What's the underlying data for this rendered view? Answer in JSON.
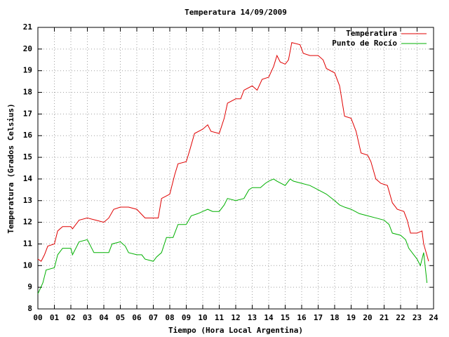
{
  "chart_data": {
    "type": "line",
    "title": "Temperatura 14/09/2009",
    "xlabel": "Tiempo (Hora Local Argentina)",
    "ylabel": "Temperatura (Grados Celsius)",
    "xlim": [
      0,
      24
    ],
    "ylim": [
      8,
      21
    ],
    "xticks": [
      {
        "value": 0,
        "label": "00"
      },
      {
        "value": 1,
        "label": "01"
      },
      {
        "value": 2,
        "label": "02"
      },
      {
        "value": 3,
        "label": "03"
      },
      {
        "value": 4,
        "label": "04"
      },
      {
        "value": 5,
        "label": "05"
      },
      {
        "value": 6,
        "label": "06"
      },
      {
        "value": 7,
        "label": "07"
      },
      {
        "value": 8,
        "label": "08"
      },
      {
        "value": 9,
        "label": "09"
      },
      10,
      11,
      12,
      13,
      14,
      15,
      16,
      17,
      18,
      19,
      20,
      21,
      22,
      23,
      24
    ],
    "yticks": [
      8,
      9,
      10,
      11,
      12,
      13,
      14,
      15,
      16,
      17,
      18,
      19,
      20,
      21
    ],
    "grid": true,
    "legend": "top-right",
    "series": [
      {
        "name": "Temperatura",
        "color": "#e00000",
        "x": [
          0,
          0.2,
          0.4,
          0.6,
          1,
          1.2,
          1.5,
          2,
          2.1,
          2.5,
          3,
          3.5,
          4,
          4.3,
          4.6,
          5,
          5.5,
          6,
          6.5,
          7,
          7.3,
          7.5,
          8,
          8.3,
          8.5,
          9,
          9.2,
          9.5,
          10,
          10.3,
          10.5,
          11,
          11.3,
          11.5,
          12,
          12.3,
          12.5,
          13,
          13.3,
          13.6,
          14,
          14.3,
          14.5,
          14.7,
          15,
          15.2,
          15.4,
          15.9,
          16.1,
          16.5,
          17,
          17.3,
          17.5,
          18,
          18.3,
          18.6,
          19,
          19.3,
          19.6,
          20,
          20.2,
          20.5,
          20.8,
          21.2,
          21.5,
          21.8,
          22.2,
          22.4,
          22.6,
          23,
          23.3,
          23.4,
          23.7
        ],
        "values": [
          10.3,
          10.2,
          10.5,
          10.9,
          11,
          11.6,
          11.8,
          11.8,
          11.7,
          12.1,
          12.2,
          12.1,
          12,
          12.2,
          12.6,
          12.7,
          12.7,
          12.6,
          12.2,
          12.2,
          12.2,
          13.1,
          13.3,
          14.2,
          14.7,
          14.8,
          15.3,
          16.1,
          16.3,
          16.5,
          16.2,
          16.1,
          16.8,
          17.5,
          17.7,
          17.7,
          18.1,
          18.3,
          18.1,
          18.6,
          18.7,
          19.2,
          19.7,
          19.4,
          19.3,
          19.5,
          20.3,
          20.2,
          19.8,
          19.7,
          19.7,
          19.5,
          19.1,
          18.9,
          18.3,
          16.9,
          16.8,
          16.2,
          15.2,
          15.1,
          14.8,
          14,
          13.8,
          13.7,
          12.9,
          12.6,
          12.5,
          12.1,
          11.5,
          11.5,
          11.6,
          11,
          10.2
        ]
      },
      {
        "name": "Punto de Rocío",
        "color": "#00b000",
        "x": [
          0,
          0.3,
          0.5,
          1,
          1.2,
          1.5,
          2,
          2.1,
          2.5,
          3,
          3.2,
          3.4,
          4,
          4.3,
          4.5,
          5,
          5.3,
          5.5,
          6,
          6.3,
          6.5,
          7,
          7.2,
          7.5,
          7.8,
          8.2,
          8.5,
          8.8,
          9,
          9.3,
          9.7,
          10,
          10.3,
          10.6,
          11,
          11.3,
          11.5,
          12,
          12.5,
          12.8,
          13,
          13.5,
          13.8,
          14,
          14.3,
          14.5,
          15,
          15.3,
          15.5,
          16,
          16.5,
          17,
          17.5,
          18,
          18.3,
          18.6,
          19,
          19.5,
          20,
          20.5,
          21,
          21.3,
          21.5,
          22,
          22.3,
          22.5,
          22.8,
          23,
          23.2,
          23.4,
          23.6
        ],
        "values": [
          8.7,
          9.2,
          9.8,
          9.9,
          10.5,
          10.8,
          10.8,
          10.5,
          11.1,
          11.2,
          10.9,
          10.6,
          10.6,
          10.6,
          11,
          11.1,
          10.9,
          10.6,
          10.5,
          10.5,
          10.3,
          10.2,
          10.4,
          10.6,
          11.3,
          11.3,
          11.9,
          11.9,
          11.9,
          12.3,
          12.4,
          12.5,
          12.6,
          12.5,
          12.5,
          12.8,
          13.1,
          13,
          13.1,
          13.5,
          13.6,
          13.6,
          13.8,
          13.9,
          14,
          13.9,
          13.7,
          14,
          13.9,
          13.8,
          13.7,
          13.5,
          13.3,
          13,
          12.8,
          12.7,
          12.6,
          12.4,
          12.3,
          12.2,
          12.1,
          11.9,
          11.5,
          11.4,
          11.2,
          10.8,
          10.5,
          10.3,
          10,
          10.6,
          9.2
        ]
      }
    ]
  }
}
